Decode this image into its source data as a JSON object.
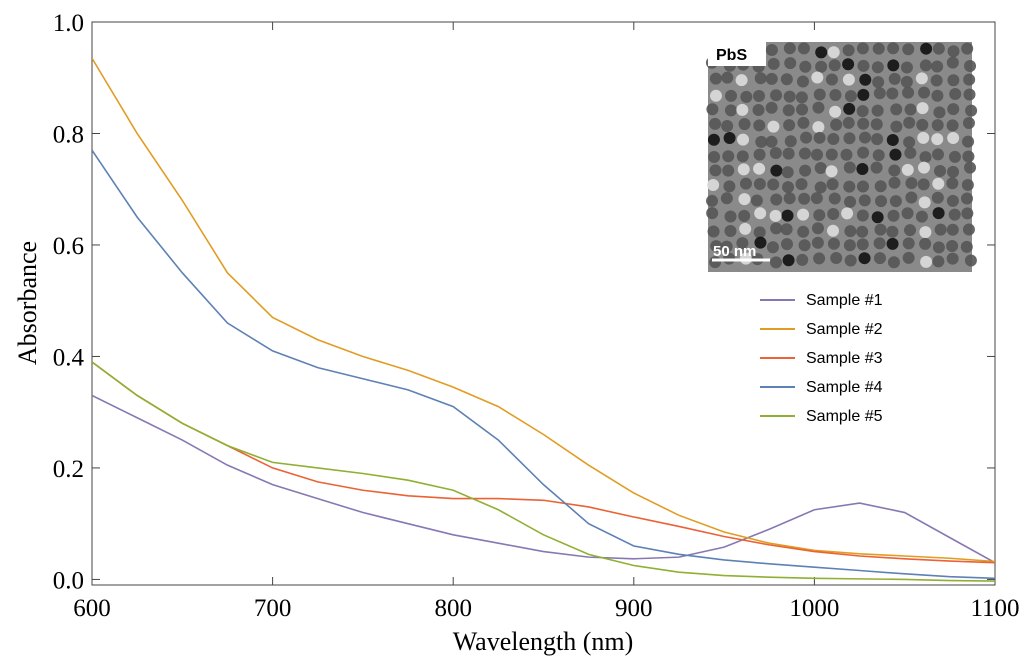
{
  "chart_data": {
    "type": "line",
    "xlabel": "Wavelength (nm)",
    "ylabel": "Absorbance",
    "x": [
      600,
      625,
      650,
      675,
      700,
      725,
      750,
      775,
      800,
      825,
      850,
      875,
      900,
      925,
      950,
      975,
      1000,
      1025,
      1050,
      1075,
      1100
    ],
    "series": [
      {
        "name": "Sample #1",
        "color": "#8778b3",
        "values": [
          0.33,
          0.29,
          0.25,
          0.205,
          0.17,
          0.145,
          0.12,
          0.1,
          0.08,
          0.065,
          0.05,
          0.04,
          0.037,
          0.04,
          0.058,
          0.09,
          0.125,
          0.137,
          0.12,
          0.075,
          0.03
        ]
      },
      {
        "name": "Sample #2",
        "color": "#e19c24",
        "values": [
          0.935,
          0.8,
          0.68,
          0.55,
          0.47,
          0.43,
          0.4,
          0.375,
          0.345,
          0.31,
          0.26,
          0.205,
          0.155,
          0.115,
          0.085,
          0.065,
          0.052,
          0.046,
          0.042,
          0.038,
          0.032
        ]
      },
      {
        "name": "Sample #3",
        "color": "#eb6235",
        "values": [
          0.39,
          0.33,
          0.28,
          0.24,
          0.2,
          0.175,
          0.16,
          0.15,
          0.145,
          0.145,
          0.142,
          0.13,
          0.112,
          0.095,
          0.077,
          0.062,
          0.05,
          0.042,
          0.037,
          0.033,
          0.03
        ]
      },
      {
        "name": "Sample #4",
        "color": "#5e81b5",
        "values": [
          0.77,
          0.65,
          0.55,
          0.46,
          0.41,
          0.38,
          0.36,
          0.34,
          0.31,
          0.25,
          0.17,
          0.1,
          0.06,
          0.045,
          0.035,
          0.028,
          0.022,
          0.016,
          0.01,
          0.005,
          0.002
        ]
      },
      {
        "name": "Sample #5",
        "color": "#8fb032",
        "values": [
          0.39,
          0.33,
          0.28,
          0.24,
          0.21,
          0.2,
          0.19,
          0.178,
          0.16,
          0.125,
          0.08,
          0.045,
          0.025,
          0.013,
          0.007,
          0.004,
          0.002,
          0.001,
          0.0,
          -0.002,
          -0.003
        ]
      }
    ],
    "xlim": [
      600,
      1100
    ],
    "ylim": [
      -0.01,
      1.0
    ],
    "xticks": [
      600,
      700,
      800,
      900,
      1000,
      1100
    ],
    "yticks": [
      {
        "value": 0,
        "label": "0.0"
      },
      0.2,
      0.4,
      0.6,
      0.8,
      {
        "value": 1,
        "label": "1.0"
      }
    ],
    "legend": "right",
    "inset_labels": [
      "PbS",
      "50 nm"
    ]
  }
}
